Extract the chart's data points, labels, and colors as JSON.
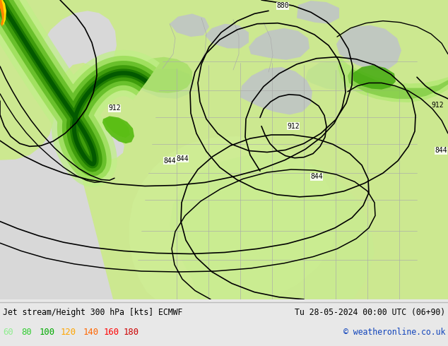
{
  "title_left": "Jet stream/Height 300 hPa [kts] ECMWF",
  "title_right": "Tu 28-05-2024 00:00 UTC (06+90)",
  "copyright": "© weatheronline.co.uk",
  "legend_values": [
    "60",
    "80",
    "100",
    "120",
    "140",
    "160",
    "180"
  ],
  "legend_colors": [
    "#90ee90",
    "#32cd32",
    "#00aa00",
    "#ffa500",
    "#ff6600",
    "#ff0000",
    "#cc0000"
  ],
  "bg_color": "#e8e8e8",
  "ocean_color": "#e0e0e0",
  "land_color": "#c8d8a0",
  "land_light_color": "#d8eca8",
  "jet_light": "#c8f0a0",
  "jet_med": "#90cc50",
  "jet_bright": "#44bb11",
  "jet_dark": "#229900",
  "jet_orange": "#ffcc00",
  "fig_width": 6.34,
  "fig_height": 4.9,
  "dpi": 100
}
